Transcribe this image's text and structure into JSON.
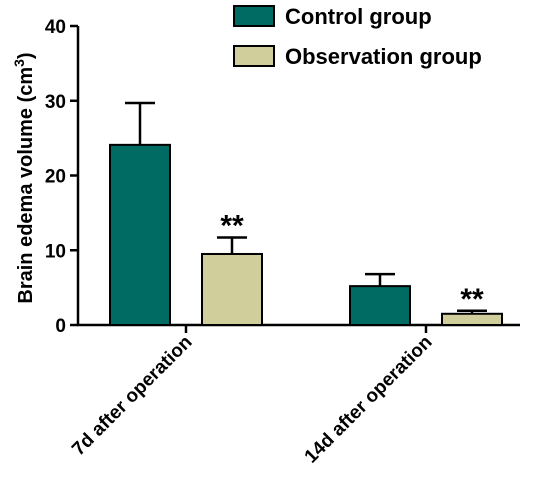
{
  "chart_data": {
    "type": "bar",
    "ylabel": "Brain edema volume (cm",
    "ylabel_sup": "3",
    "ylabel_close": ")",
    "ylim": [
      0,
      40
    ],
    "yticks": [
      0,
      10,
      20,
      30,
      40
    ],
    "categories": [
      "7d after operation",
      "14d after operation"
    ],
    "series": [
      {
        "name": "Control group",
        "color": "#006b63",
        "values": [
          24.1,
          5.2
        ],
        "errors": [
          5.6,
          1.6
        ]
      },
      {
        "name": "Observation group",
        "color": "#d0cf9b",
        "values": [
          9.5,
          1.5
        ],
        "errors": [
          2.2,
          0.4
        ]
      }
    ],
    "annotations": [
      {
        "category": 0,
        "series": 1,
        "text": "**"
      },
      {
        "category": 1,
        "series": 1,
        "text": "**"
      }
    ],
    "legend_position": "top-right",
    "grid": false
  }
}
